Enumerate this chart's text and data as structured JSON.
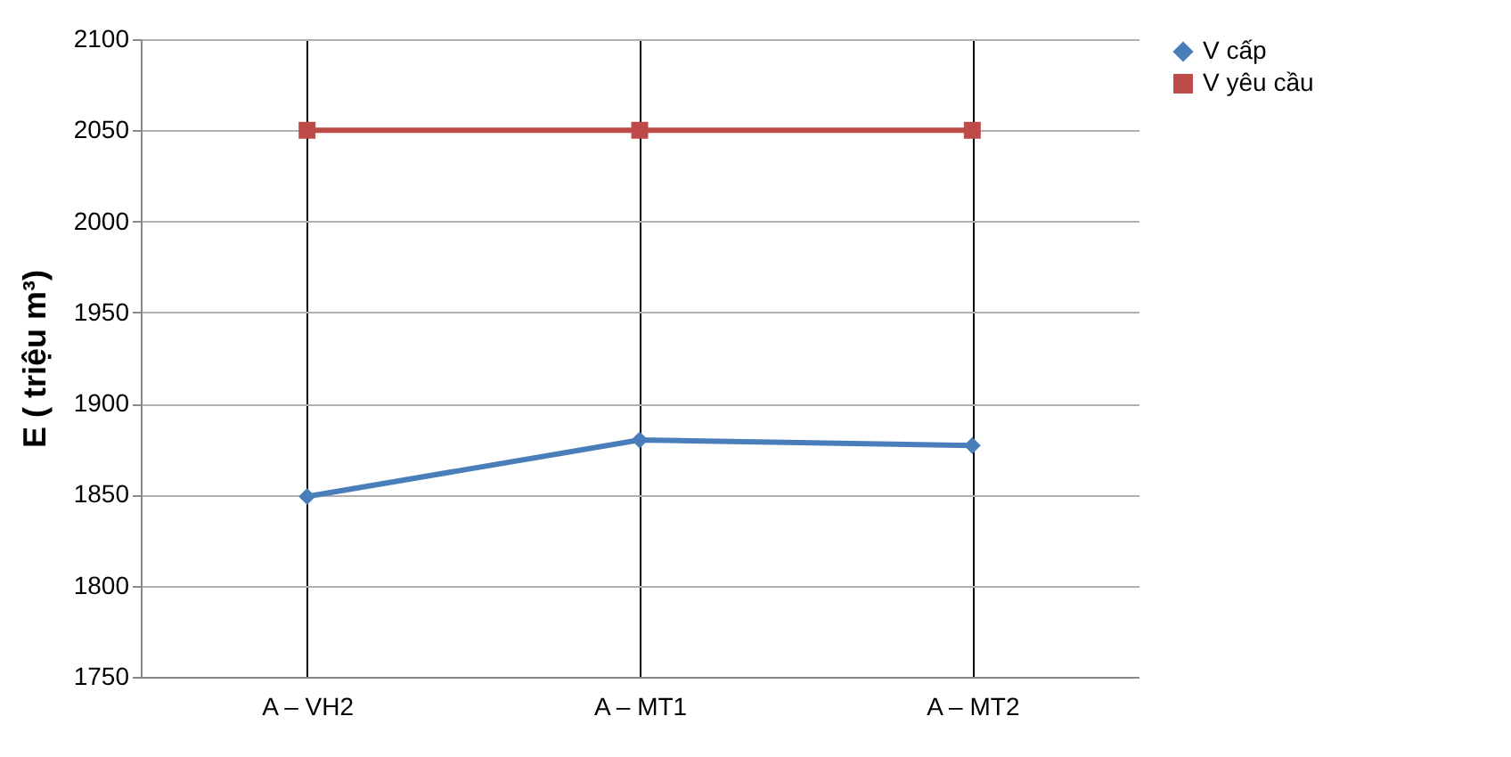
{
  "chart_data": {
    "type": "line",
    "ylabel": "E ( triệu m³)",
    "categories": [
      "A – VH2",
      "A – MT1",
      "A – MT2"
    ],
    "series": [
      {
        "name": "V cấp",
        "color": "#4a7ebb",
        "marker": "diamond",
        "values": [
          1849,
          1880,
          1877
        ]
      },
      {
        "name": "V yêu cầu",
        "color": "#be4b48",
        "marker": "square",
        "values": [
          2050,
          2050,
          2050
        ]
      }
    ],
    "ylim": [
      1750,
      2100
    ],
    "yticks": [
      1750,
      1800,
      1850,
      1900,
      1950,
      2000,
      2050,
      2100
    ],
    "grid": true,
    "legend": "right"
  }
}
